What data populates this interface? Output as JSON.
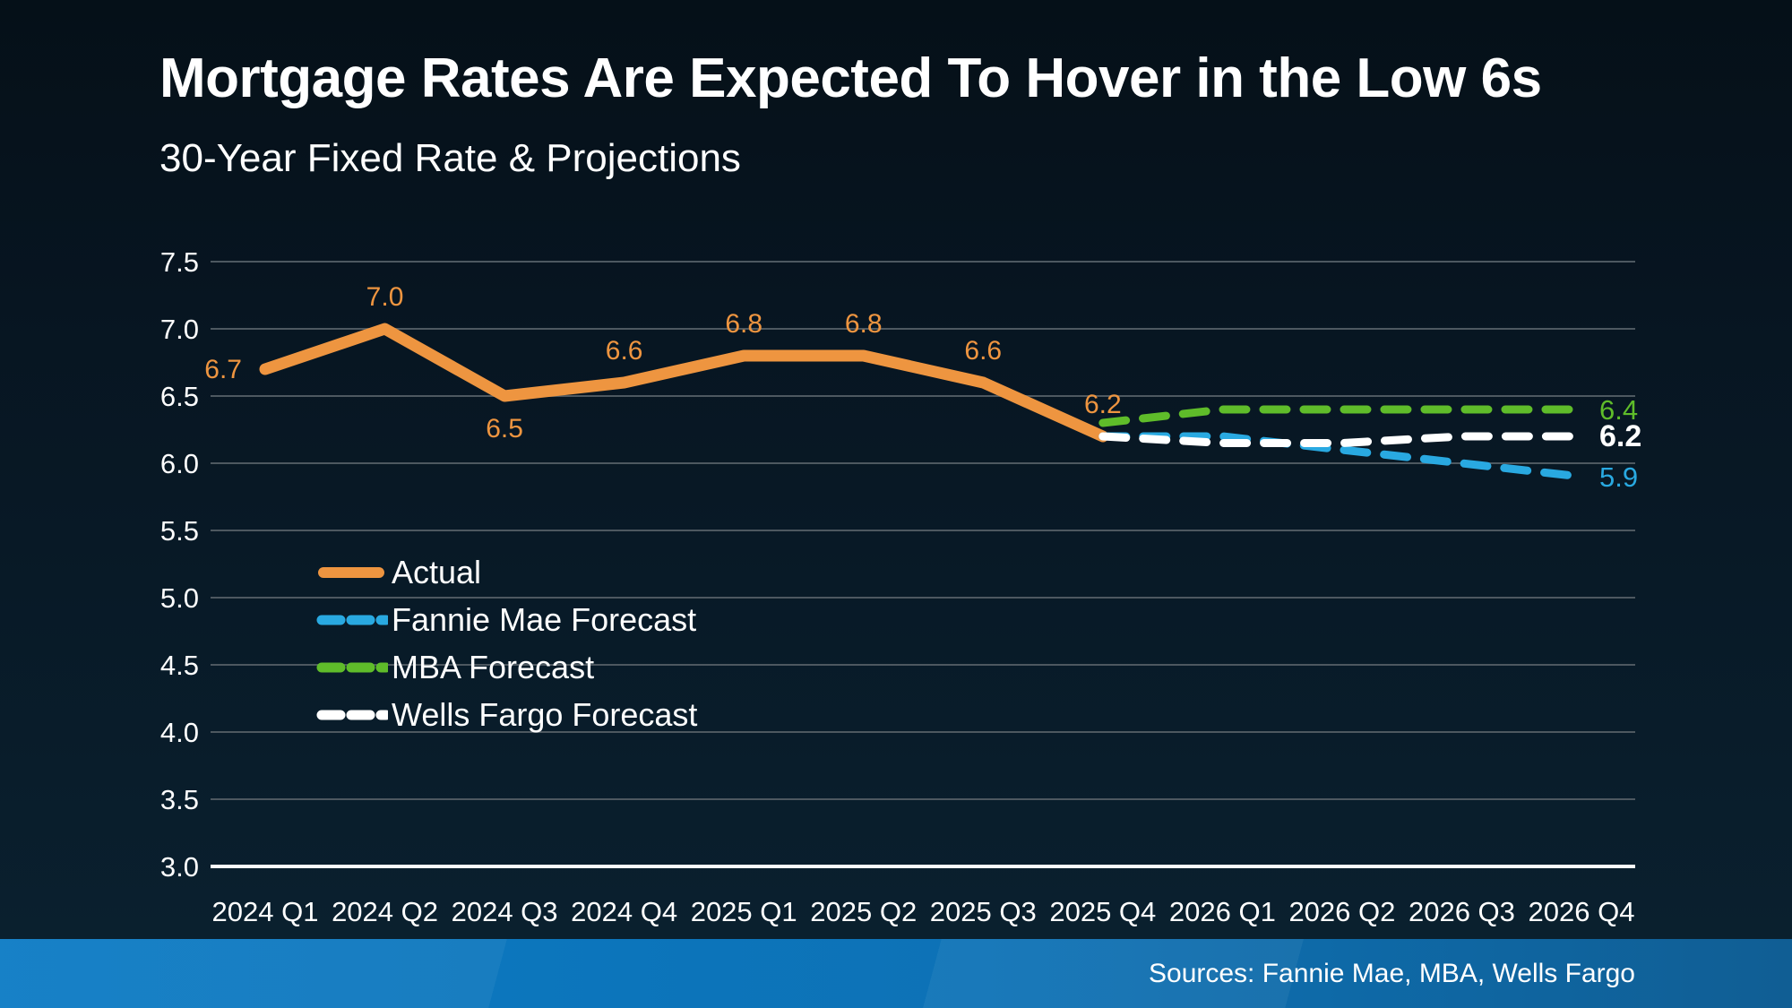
{
  "header": {
    "title": "Mortgage Rates Are Expected To Hover in the Low 6s",
    "subtitle": "30-Year Fixed Rate & Projections"
  },
  "footer": {
    "sources": "Sources: Fannie Mae, MBA, Wells Fargo"
  },
  "chart_data": {
    "type": "line",
    "title": "Mortgage Rates Are Expected To Hover in the Low 6s",
    "subtitle": "30-Year Fixed Rate & Projections",
    "categories": [
      "2024 Q1",
      "2024 Q2",
      "2024 Q3",
      "2024 Q4",
      "2025 Q1",
      "2025 Q2",
      "2025 Q3",
      "2025 Q4",
      "2026 Q1",
      "2026 Q2",
      "2026 Q3",
      "2026 Q4"
    ],
    "y_axis": {
      "min": 3.0,
      "max": 7.5,
      "step": 0.5
    },
    "grid": true,
    "legend_position": "inside-left-middle",
    "gridline_color": "#4D5860",
    "baseline_color": "#FAFAFA",
    "axis_label_color": "#FFFFFF",
    "series": [
      {
        "name": "Actual",
        "color": "#EE9540",
        "style": "solid",
        "values": [
          6.7,
          7.0,
          6.5,
          6.6,
          6.8,
          6.8,
          6.6,
          6.2,
          null,
          null,
          null,
          null
        ],
        "label_positions": [
          "left",
          "above",
          "below",
          "above",
          "above",
          "above",
          "above",
          "above"
        ],
        "end_label": false
      },
      {
        "name": "Fannie Mae Forecast",
        "color": "#29A9E1",
        "style": "dashed",
        "values": [
          null,
          null,
          null,
          null,
          null,
          null,
          null,
          6.2,
          6.2,
          6.1,
          6.0,
          5.9
        ],
        "end_label": true,
        "end_label_bold": false
      },
      {
        "name": "MBA Forecast",
        "color": "#5FBC2A",
        "style": "dashed",
        "values": [
          null,
          null,
          null,
          null,
          null,
          null,
          null,
          6.3,
          6.4,
          6.4,
          6.4,
          6.4
        ],
        "end_label": true,
        "end_label_bold": false
      },
      {
        "name": "Wells Fargo Forecast",
        "color": "#FFFFFF",
        "style": "dashed",
        "values": [
          null,
          null,
          null,
          null,
          null,
          null,
          null,
          6.2,
          6.15,
          6.15,
          6.2,
          6.2
        ],
        "end_label": true,
        "end_label_bold": true
      }
    ]
  }
}
